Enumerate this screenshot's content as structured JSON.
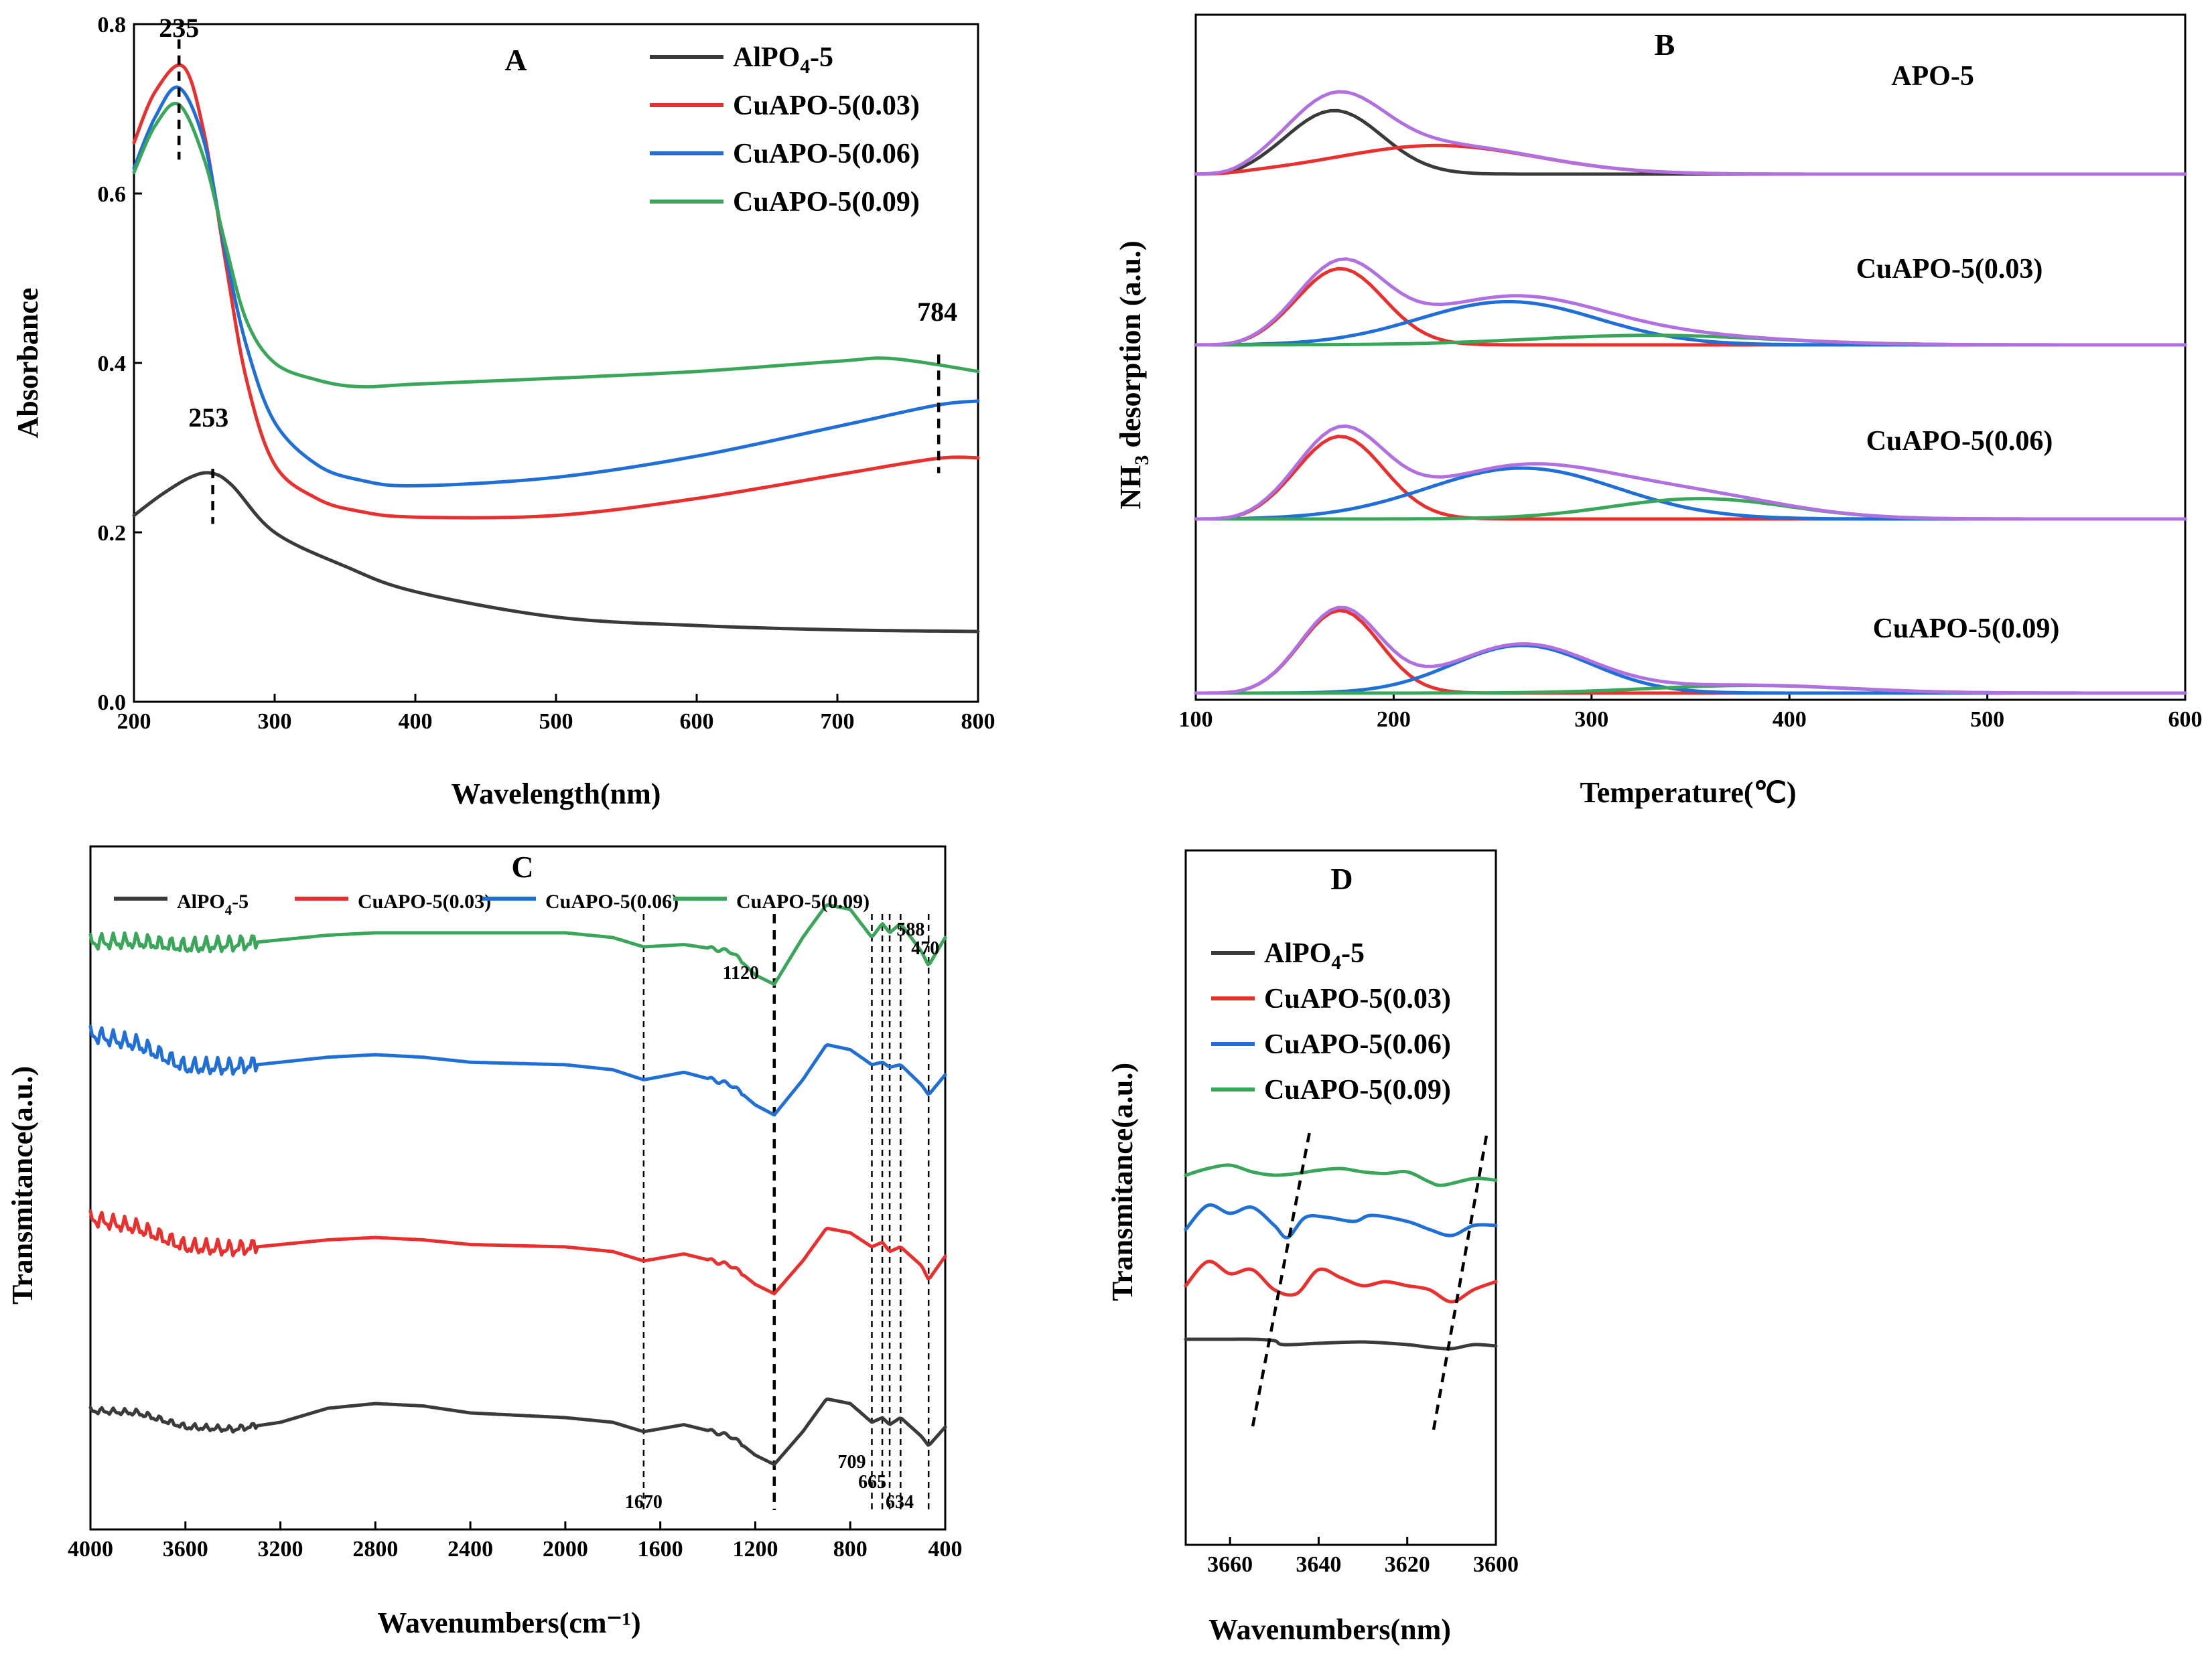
{
  "colors": {
    "AlPO4-5": "#3a3a3a",
    "CuAPO-5(0.03)": "#e8302e",
    "CuAPO-5(0.06)": "#1f6fd6",
    "CuAPO-5(0.09)": "#3aa65a",
    "envelope": "#b070e0"
  },
  "series_labels": {
    "s0_main": "AlPO",
    "s0_sub": "4",
    "s0_tail": "-5",
    "s1": "CuAPO-5(0.03)",
    "s2": "CuAPO-5(0.06)",
    "s3": "CuAPO-5(0.09)"
  },
  "chart_data": [
    {
      "panel": "A",
      "type": "line",
      "title": "A",
      "xlabel": "Wavelength(nm)",
      "ylabel": "Absorbance",
      "xlim": [
        200,
        800
      ],
      "ylim": [
        0,
        0.8
      ],
      "xticks": [
        "200",
        "300",
        "400",
        "500",
        "600",
        "700",
        "800"
      ],
      "yticks": [
        "0.0",
        "0.2",
        "0.4",
        "0.6",
        "0.8"
      ],
      "legend_position": "top-right",
      "annotations": [
        {
          "text": "235",
          "x": 235
        },
        {
          "text": "253",
          "x": 253
        },
        {
          "text": "784",
          "x": 784
        }
      ],
      "series": [
        {
          "name": "AlPO4-5",
          "x": [
            200,
            220,
            240,
            255,
            270,
            300,
            350,
            400,
            500,
            600,
            700,
            800
          ],
          "y": [
            0.22,
            0.245,
            0.265,
            0.27,
            0.255,
            0.2,
            0.16,
            0.13,
            0.1,
            0.09,
            0.085,
            0.083
          ]
        },
        {
          "name": "CuAPO-5(0.03)",
          "x": [
            200,
            215,
            235,
            250,
            265,
            280,
            300,
            330,
            360,
            400,
            500,
            600,
            700,
            770,
            800
          ],
          "y": [
            0.66,
            0.72,
            0.75,
            0.67,
            0.52,
            0.38,
            0.28,
            0.24,
            0.225,
            0.218,
            0.22,
            0.24,
            0.268,
            0.287,
            0.288
          ]
        },
        {
          "name": "CuAPO-5(0.06)",
          "x": [
            200,
            215,
            232,
            250,
            265,
            280,
            300,
            330,
            360,
            400,
            500,
            600,
            700,
            770,
            800
          ],
          "y": [
            0.63,
            0.69,
            0.725,
            0.66,
            0.53,
            0.42,
            0.33,
            0.28,
            0.262,
            0.255,
            0.265,
            0.29,
            0.325,
            0.35,
            0.355
          ]
        },
        {
          "name": "CuAPO-5(0.09)",
          "x": [
            200,
            215,
            232,
            250,
            265,
            280,
            300,
            330,
            360,
            400,
            500,
            600,
            700,
            740,
            800
          ],
          "y": [
            0.625,
            0.68,
            0.705,
            0.64,
            0.54,
            0.45,
            0.4,
            0.38,
            0.372,
            0.375,
            0.382,
            0.39,
            0.402,
            0.405,
            0.39
          ]
        }
      ]
    },
    {
      "panel": "B",
      "type": "line",
      "title": "B",
      "xlabel": "Temperature(℃)",
      "ylabel_main": "NH",
      "ylabel_sub": "3",
      "ylabel_tail": " desorption (a.u.)",
      "xlim": [
        100,
        600
      ],
      "xticks": [
        "100",
        "200",
        "300",
        "400",
        "500",
        "600"
      ],
      "stack_labels": [
        "APO-5",
        "CuAPO-5(0.03)",
        "CuAPO-5(0.06)",
        "CuAPO-5(0.09)"
      ],
      "stacks": [
        {
          "name": "APO-5",
          "peaks": [
            {
              "color": "AlPO4-5",
              "center": 170,
              "height": 1.0,
              "width": 24
            },
            {
              "color": "CuAPO-5(0.03)",
              "center": 222,
              "height": 0.45,
              "width": 50
            }
          ]
        },
        {
          "name": "CuAPO-5(0.03)",
          "peaks": [
            {
              "color": "CuAPO-5(0.03)",
              "center": 173,
              "height": 1.2,
              "width": 22
            },
            {
              "color": "CuAPO-5(0.06)",
              "center": 258,
              "height": 0.68,
              "width": 45
            },
            {
              "color": "CuAPO-5(0.09)",
              "center": 330,
              "height": 0.15,
              "width": 60
            }
          ]
        },
        {
          "name": "CuAPO-5(0.06)",
          "peaks": [
            {
              "color": "CuAPO-5(0.03)",
              "center": 173,
              "height": 1.3,
              "width": 22
            },
            {
              "color": "CuAPO-5(0.06)",
              "center": 265,
              "height": 0.8,
              "width": 48
            },
            {
              "color": "CuAPO-5(0.09)",
              "center": 355,
              "height": 0.32,
              "width": 45
            }
          ]
        },
        {
          "name": "CuAPO-5(0.09)",
          "peaks": [
            {
              "color": "CuAPO-5(0.03)",
              "center": 173,
              "height": 1.3,
              "width": 20
            },
            {
              "color": "CuAPO-5(0.06)",
              "center": 265,
              "height": 0.75,
              "width": 35
            },
            {
              "color": "CuAPO-5(0.09)",
              "center": 380,
              "height": 0.12,
              "width": 50
            }
          ]
        }
      ]
    },
    {
      "panel": "C",
      "type": "line",
      "title": "C",
      "xlabel": "Wavenumbers(cm⁻¹)",
      "ylabel": "Transmitance(a.u.)",
      "xlim": [
        4000,
        400
      ],
      "xticks": [
        "4000",
        "3600",
        "3200",
        "2800",
        "2400",
        "2000",
        "1600",
        "1200",
        "800",
        "400"
      ],
      "dashed_lines": [
        1670,
        1120,
        709,
        665,
        634,
        588,
        470
      ],
      "annotations": [
        {
          "text": "1670",
          "x": 1670
        },
        {
          "text": "1120",
          "x": 1120
        },
        {
          "text": "709",
          "x": 709
        },
        {
          "text": "665",
          "x": 665
        },
        {
          "text": "634",
          "x": 634
        },
        {
          "text": "588",
          "x": 588
        },
        {
          "text": "470",
          "x": 470
        }
      ],
      "series": [
        {
          "name": "AlPO4-5",
          "x": [
            4000,
            3800,
            3600,
            3400,
            3200,
            3000,
            2800,
            2600,
            2400,
            2000,
            1800,
            1670,
            1500,
            1300,
            1200,
            1120,
            1000,
            900,
            800,
            709,
            665,
            634,
            588,
            500,
            470,
            400
          ],
          "y": [
            0.55,
            0.5,
            0.2,
            0.15,
            0.3,
            0.6,
            0.7,
            0.65,
            0.5,
            0.4,
            0.3,
            0.1,
            0.25,
            0.0,
            -0.4,
            -0.6,
            0.1,
            0.8,
            0.7,
            0.3,
            0.4,
            0.25,
            0.4,
            0.0,
            -0.2,
            0.2
          ]
        },
        {
          "name": "CuAPO-5(0.03)",
          "x": [
            4000,
            3800,
            3600,
            3400,
            3200,
            3000,
            2800,
            2600,
            2400,
            2000,
            1800,
            1670,
            1500,
            1300,
            1200,
            1120,
            1000,
            900,
            800,
            709,
            665,
            634,
            588,
            500,
            470,
            400
          ],
          "y": [
            1.0,
            0.8,
            0.4,
            0.35,
            0.45,
            0.55,
            0.6,
            0.55,
            0.45,
            0.4,
            0.3,
            0.1,
            0.25,
            0.0,
            -0.4,
            -0.6,
            0.1,
            0.8,
            0.7,
            0.4,
            0.5,
            0.3,
            0.4,
            0.0,
            -0.3,
            0.2
          ]
        },
        {
          "name": "CuAPO-5(0.06)",
          "x": [
            4000,
            3800,
            3600,
            3400,
            3200,
            3000,
            2800,
            2600,
            2400,
            2000,
            1800,
            1670,
            1500,
            1300,
            1200,
            1120,
            1000,
            900,
            800,
            709,
            665,
            634,
            588,
            500,
            470,
            400
          ],
          "y": [
            1.0,
            0.8,
            0.35,
            0.35,
            0.45,
            0.55,
            0.6,
            0.55,
            0.45,
            0.4,
            0.3,
            0.1,
            0.25,
            0.0,
            -0.4,
            -0.6,
            0.1,
            0.8,
            0.7,
            0.4,
            0.45,
            0.35,
            0.4,
            0.0,
            -0.2,
            0.2
          ]
        },
        {
          "name": "CuAPO-5(0.09)",
          "x": [
            4000,
            3800,
            3600,
            3400,
            3200,
            3000,
            2800,
            2600,
            2400,
            2000,
            1800,
            1670,
            1500,
            1300,
            1200,
            1120,
            1000,
            900,
            800,
            709,
            665,
            634,
            588,
            500,
            470,
            400
          ],
          "y": [
            0.4,
            0.4,
            0.3,
            0.35,
            0.45,
            0.55,
            0.6,
            0.6,
            0.6,
            0.6,
            0.5,
            0.3,
            0.35,
            0.2,
            -0.3,
            -0.5,
            0.5,
            1.2,
            1.1,
            0.5,
            0.8,
            0.6,
            0.8,
            0.2,
            -0.1,
            0.5
          ]
        }
      ]
    },
    {
      "panel": "D",
      "type": "line",
      "title": "D",
      "xlabel": "Wavenumbers(nm)",
      "ylabel": "Transmitance(a.u.)",
      "xlim": [
        3670,
        3600
      ],
      "xticks": [
        "3660",
        "3640",
        "3620",
        "3600"
      ],
      "legend_position": "top-left",
      "series": [
        {
          "name": "AlPO4-5",
          "x": [
            3670,
            3660,
            3655,
            3650,
            3648,
            3640,
            3630,
            3620,
            3615,
            3610,
            3605,
            3600
          ],
          "y": [
            0.5,
            0.5,
            0.5,
            0.45,
            0.3,
            0.35,
            0.4,
            0.3,
            0.2,
            0.15,
            0.3,
            0.25
          ]
        },
        {
          "name": "CuAPO-5(0.03)",
          "x": [
            3670,
            3665,
            3660,
            3655,
            3650,
            3645,
            3640,
            3635,
            3630,
            3625,
            3620,
            3615,
            3610,
            3605,
            3600
          ],
          "y": [
            0.5,
            1.1,
            0.8,
            0.9,
            0.4,
            0.3,
            0.9,
            0.7,
            0.5,
            0.6,
            0.5,
            0.4,
            0.1,
            0.4,
            0.6
          ]
        },
        {
          "name": "CuAPO-5(0.06)",
          "x": [
            3670,
            3665,
            3660,
            3655,
            3650,
            3647,
            3643,
            3638,
            3632,
            3628,
            3620,
            3615,
            3610,
            3605,
            3600
          ],
          "y": [
            0.4,
            1.0,
            0.8,
            0.95,
            0.5,
            0.2,
            0.7,
            0.7,
            0.6,
            0.75,
            0.6,
            0.4,
            0.25,
            0.5,
            0.5
          ]
        },
        {
          "name": "CuAPO-5(0.09)",
          "x": [
            3670,
            3665,
            3660,
            3655,
            3650,
            3645,
            3640,
            3635,
            3630,
            3625,
            3620,
            3615,
            3612,
            3605,
            3600
          ],
          "y": [
            0.6,
            0.8,
            0.9,
            0.7,
            0.6,
            0.65,
            0.75,
            0.8,
            0.7,
            0.65,
            0.7,
            0.4,
            0.3,
            0.5,
            0.45
          ]
        }
      ]
    }
  ]
}
